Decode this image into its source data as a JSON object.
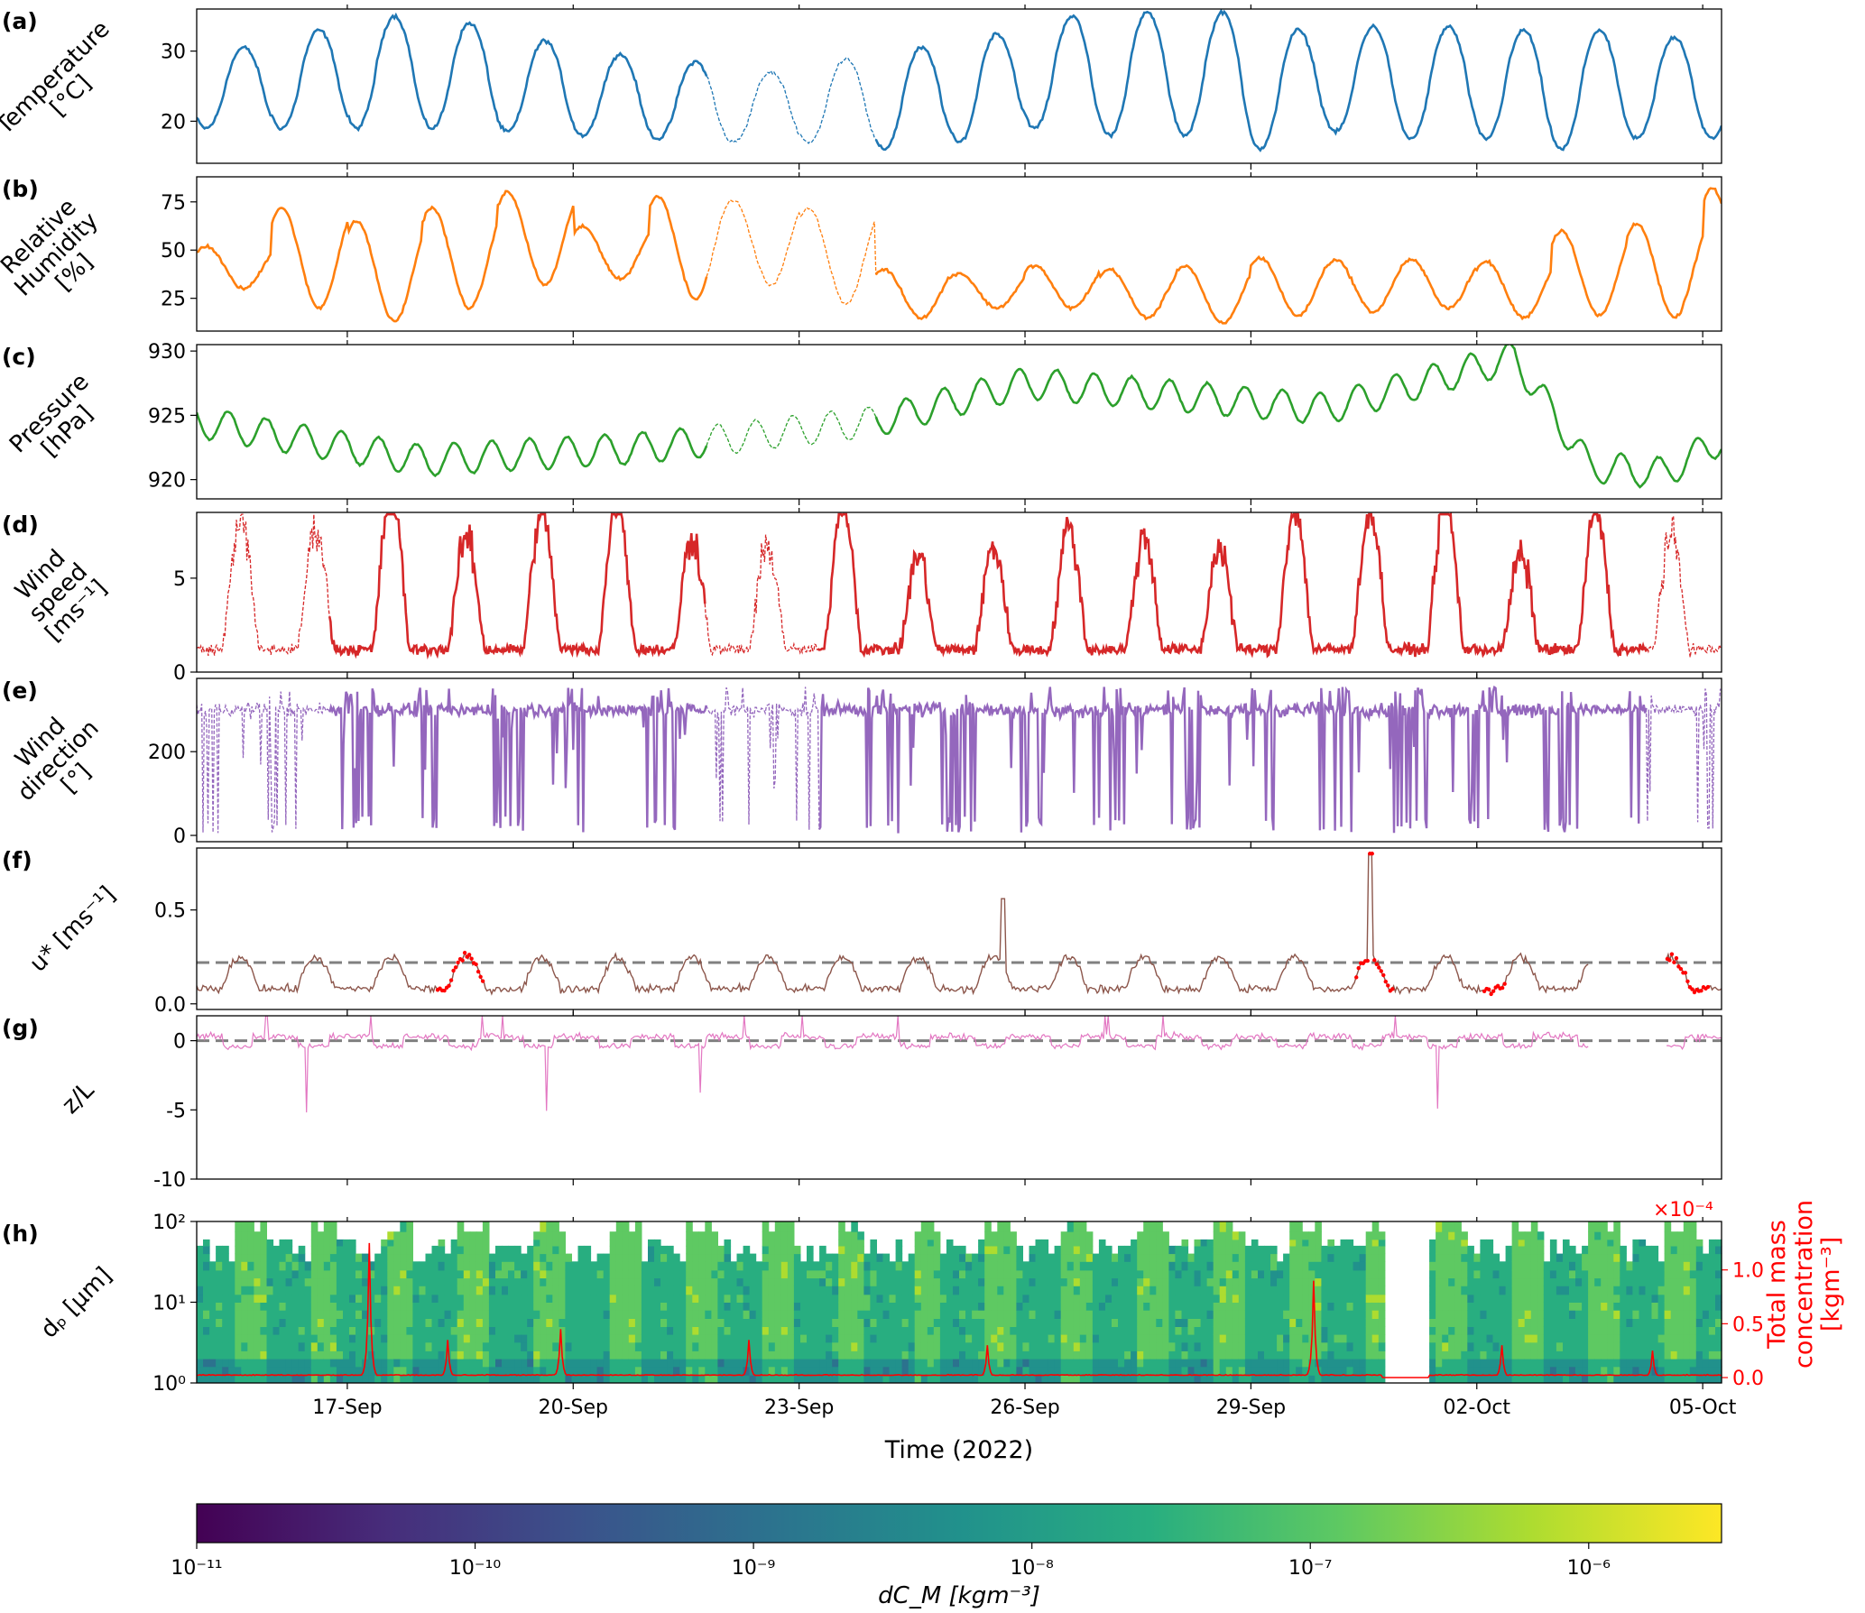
{
  "figure": {
    "xlabel": "Time (2022)",
    "x_ticks": [
      "17-Sep",
      "20-Sep",
      "23-Sep",
      "26-Sep",
      "29-Sep",
      "02-Oct",
      "05-Oct"
    ],
    "x_range": [
      "2022-09-15",
      "2022-10-05 06:00"
    ]
  },
  "chart_data": [
    {
      "panel": "(a)",
      "type": "line",
      "ylabel": [
        "Temperature",
        "[°C]"
      ],
      "yticks": [
        20,
        30
      ],
      "ylim": [
        14,
        36
      ],
      "color": "#1f77b4",
      "series": [
        {
          "kind": "diurnal",
          "base": 25.5,
          "amplitude": 7.5,
          "peak_hour": 15,
          "min_range": [
            16,
            20
          ],
          "max_range": [
            28,
            35
          ]
        }
      ],
      "dashed_segments": [
        [
          "2022-09-21 18:00",
          "2022-09-24 00:00"
        ]
      ]
    },
    {
      "panel": "(b)",
      "type": "line",
      "ylabel": [
        "Relative",
        "Humidity",
        "[%]"
      ],
      "yticks": [
        25,
        50,
        75
      ],
      "ylim": [
        8,
        88
      ],
      "color": "#ff7f0e",
      "series": [
        {
          "kind": "diurnal",
          "phase": "inverse",
          "max_before_23sep": [
            65,
            80
          ],
          "max_after_23sep": [
            35,
            50
          ],
          "min_range": [
            10,
            25
          ],
          "late_peak": [
            "2022-10-04 20:00",
            82
          ]
        }
      ],
      "dashed_segments": [
        [
          "2022-09-21 18:00",
          "2022-09-24 00:00"
        ]
      ]
    },
    {
      "panel": "(c)",
      "type": "line",
      "ylabel": [
        "Pressure",
        "[hPa]"
      ],
      "yticks": [
        920,
        925,
        930
      ],
      "ylim": [
        918.5,
        930.5
      ],
      "color": "#2ca02c",
      "series": [
        {
          "kind": "semidiurnal",
          "trend": [
            [
              0,
              924.5
            ],
            [
              3,
              921.5
            ],
            [
              6,
              922.5
            ],
            [
              9,
              924.5
            ],
            [
              11,
              927.5
            ],
            [
              15,
              925.5
            ],
            [
              17.5,
              929.5
            ],
            [
              18.5,
              921
            ],
            [
              19.5,
              920.5
            ],
            [
              20.2,
              923
            ]
          ]
        }
      ],
      "dashed_segments": [
        [
          "2022-09-21 18:00",
          "2022-09-24 00:00"
        ]
      ]
    },
    {
      "panel": "(d)",
      "type": "line",
      "ylabel": [
        "Wind",
        "speed",
        "[ms⁻¹]"
      ],
      "yticks": [
        0,
        5
      ],
      "ylim": [
        0,
        8.5
      ],
      "color": "#d62728",
      "series": [
        {
          "kind": "diurnal-gusty",
          "min": 0,
          "max_range": [
            5,
            8.5
          ]
        }
      ],
      "dashed_segments": [
        [
          "2022-09-15 00:00",
          "2022-09-16 18:00"
        ],
        [
          "2022-09-21 18:00",
          "2022-09-23 06:00"
        ],
        [
          "2022-10-04 06:00",
          "2022-10-05 06:00"
        ]
      ]
    },
    {
      "panel": "(e)",
      "type": "line",
      "ylabel": [
        "Wind",
        "direction",
        "[°]"
      ],
      "yticks": [
        0,
        200
      ],
      "ylim": [
        -15,
        375
      ],
      "color": "#9467bd",
      "series": [
        {
          "kind": "wrapping-direction",
          "range": [
            0,
            360
          ],
          "typical": 320
        }
      ],
      "dashed_segments": [
        [
          "2022-09-15 00:00",
          "2022-09-16 18:00"
        ],
        [
          "2022-09-21 18:00",
          "2022-09-23 06:00"
        ],
        [
          "2022-10-04 06:00",
          "2022-10-05 06:00"
        ]
      ]
    },
    {
      "panel": "(f)",
      "type": "line",
      "ylabel": [
        "u* [ms⁻¹]"
      ],
      "yticks": [
        0.0,
        0.5
      ],
      "ylim": [
        -0.03,
        0.83
      ],
      "color": "#8c564b",
      "reference_line": 0.22,
      "series": [
        {
          "kind": "diurnal",
          "min": 0.05,
          "max_range": [
            0.2,
            0.35
          ],
          "spikes": [
            [
              "2022-09-25 17:00",
              0.56
            ],
            [
              "2022-09-30 14:00",
              0.8
            ]
          ]
        }
      ],
      "gap": [
        "2022-10-03 12:00",
        "2022-10-04 12:00"
      ],
      "flagged_color": "#ff0000"
    },
    {
      "panel": "(g)",
      "type": "line",
      "ylabel": [
        "z/L"
      ],
      "yticks": [
        -10,
        -5,
        0
      ],
      "ylim": [
        -10,
        1.8
      ],
      "color": "#e377c2",
      "reference_line": 0,
      "series": [
        {
          "kind": "stability",
          "typical_range": [
            -1,
            1
          ]
        }
      ],
      "gap": [
        "2022-10-03 12:00",
        "2022-10-04 12:00"
      ],
      "flagged_color": "#ff0000"
    },
    {
      "panel": "(h)",
      "type": "heatmap",
      "ylabel": [
        "dₚ [μm]"
      ],
      "yscale": "log",
      "ylim": [
        1,
        100
      ],
      "yticks": [
        "10⁰",
        "10¹",
        "10²"
      ],
      "secondary_axis": {
        "ylabel": [
          "Total mass",
          "concentration",
          "[kgm⁻³]"
        ],
        "yticks": [
          "0.0",
          "0.5",
          "1.0"
        ],
        "ylim": [
          -0.05,
          1.45
        ],
        "offset_label": "×10⁻⁴",
        "color": "#ff0000"
      },
      "data_gap": [
        "2022-09-30 18:00",
        "2022-10-01 09:00"
      ],
      "total_mass_spikes": [
        [
          "2022-09-17 07:00",
          1.25
        ],
        [
          "2022-09-18 08:00",
          0.35
        ],
        [
          "2022-09-19 20:00",
          0.45
        ],
        [
          "2022-09-22 08:00",
          0.35
        ],
        [
          "2022-09-25 12:00",
          0.3
        ],
        [
          "2022-09-29 20:00",
          0.9
        ],
        [
          "2022-10-02 08:00",
          0.3
        ],
        [
          "2022-10-04 08:00",
          0.25
        ]
      ]
    }
  ],
  "colorbar": {
    "label": "dC_M  [kgm⁻³]",
    "scale": "log",
    "range": [
      1e-11,
      3e-06
    ],
    "ticks": [
      "10⁻¹¹",
      "10⁻¹⁰",
      "10⁻⁹",
      "10⁻⁸",
      "10⁻⁷",
      "10⁻⁶"
    ],
    "colormap": "viridis"
  }
}
